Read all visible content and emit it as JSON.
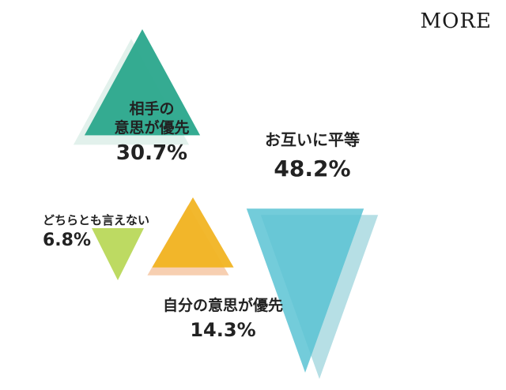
{
  "brand": {
    "logo_text": "MORE"
  },
  "chart_data": {
    "type": "area",
    "unit": "%",
    "categories": [
      "相手の意思が優先",
      "お互いに平等",
      "どちらとも言えない",
      "自分の意思が優先"
    ],
    "values": [
      30.7,
      48.2,
      6.8,
      14.3
    ],
    "value_labels": [
      "30.7%",
      "48.2%",
      "6.8%",
      "14.3%"
    ],
    "label_lines": [
      [
        "相手の",
        "意思が優先"
      ],
      [
        "お互いに平等"
      ],
      [
        "どちらとも言えない"
      ],
      [
        "自分の意思が優先"
      ]
    ],
    "colors": [
      "#2aa78c",
      "#5bc3d3",
      "#b9d85a",
      "#f1b423"
    ],
    "shadow_colors": [
      "#e2f1ec",
      "#b6dfe5",
      "#e9f1cf",
      "#f7cfb1"
    ]
  }
}
